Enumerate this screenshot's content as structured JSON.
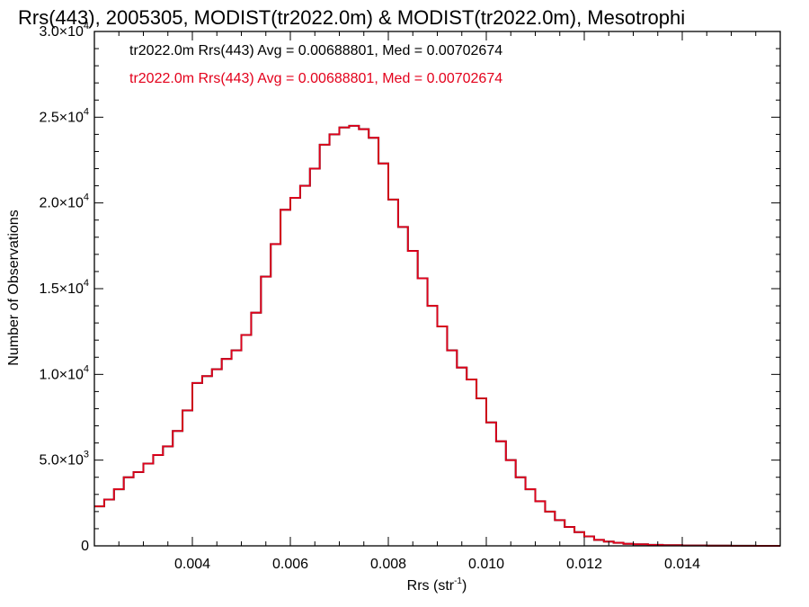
{
  "chart_data": {
    "type": "line",
    "style": "step-histogram",
    "title": "Rrs(443), 2005305, MODIST(tr2022.0m) & MODIST(tr2022.0m), Mesotrophi",
    "xlabel": "Rrs (str",
    "xlabel_sup": "-1",
    "xlabel_suffix": ")",
    "ylabel": "Number of Observations",
    "xlim": [
      0.002,
      0.016
    ],
    "ylim": [
      0,
      30000
    ],
    "x_ticks": [
      {
        "value": 0.004,
        "label": "0.004"
      },
      {
        "value": 0.006,
        "label": "0.006"
      },
      {
        "value": 0.008,
        "label": "0.008"
      },
      {
        "value": 0.01,
        "label": "0.010"
      },
      {
        "value": 0.012,
        "label": "0.012"
      },
      {
        "value": 0.014,
        "label": "0.014"
      }
    ],
    "y_ticks": [
      {
        "value": 0,
        "mant": "0",
        "exp": ""
      },
      {
        "value": 5000,
        "mant": "5.0×10",
        "exp": "3"
      },
      {
        "value": 10000,
        "mant": "1.0×10",
        "exp": "4"
      },
      {
        "value": 15000,
        "mant": "1.5×10",
        "exp": "4"
      },
      {
        "value": 20000,
        "mant": "2.0×10",
        "exp": "4"
      },
      {
        "value": 25000,
        "mant": "2.5×10",
        "exp": "4"
      },
      {
        "value": 30000,
        "mant": "3.0×10",
        "exp": "4"
      }
    ],
    "grid": false,
    "series": [
      {
        "name": "tr2022.0m Rrs(443) Avg = 0.00688801, Med = 0.00702674",
        "color": "#000000",
        "x": [
          0.002,
          0.0022,
          0.0024,
          0.0026,
          0.0028,
          0.003,
          0.0032,
          0.0034,
          0.0036,
          0.0038,
          0.004,
          0.0042,
          0.0044,
          0.0046,
          0.0048,
          0.005,
          0.0052,
          0.0054,
          0.0056,
          0.0058,
          0.006,
          0.0062,
          0.0064,
          0.0066,
          0.0068,
          0.007,
          0.0072,
          0.0074,
          0.0076,
          0.0078,
          0.008,
          0.0082,
          0.0084,
          0.0086,
          0.0088,
          0.009,
          0.0092,
          0.0094,
          0.0096,
          0.0098,
          0.01,
          0.0102,
          0.0104,
          0.0106,
          0.0108,
          0.011,
          0.0112,
          0.0114,
          0.0116,
          0.0118,
          0.012,
          0.0122,
          0.0124,
          0.0126,
          0.0128,
          0.013,
          0.0133,
          0.0136,
          0.014,
          0.0145,
          0.015,
          0.0155,
          0.016
        ],
        "values": [
          2300,
          2700,
          3300,
          4000,
          4300,
          4800,
          5300,
          5800,
          6700,
          7900,
          9500,
          9900,
          10300,
          10900,
          11400,
          12300,
          13600,
          15700,
          17600,
          19600,
          20300,
          21000,
          22000,
          23400,
          24000,
          24400,
          24500,
          24300,
          23800,
          22300,
          20200,
          18600,
          17200,
          15600,
          14000,
          12800,
          11400,
          10400,
          9700,
          8600,
          7200,
          6100,
          5000,
          4000,
          3300,
          2600,
          2000,
          1500,
          1100,
          800,
          550,
          350,
          250,
          180,
          120,
          90,
          60,
          40,
          20,
          10,
          5,
          2,
          0
        ]
      },
      {
        "name": "tr2022.0m Rrs(443) Avg = 0.00688801, Med = 0.00702674",
        "color": "#e3001b",
        "x": [
          0.002,
          0.0022,
          0.0024,
          0.0026,
          0.0028,
          0.003,
          0.0032,
          0.0034,
          0.0036,
          0.0038,
          0.004,
          0.0042,
          0.0044,
          0.0046,
          0.0048,
          0.005,
          0.0052,
          0.0054,
          0.0056,
          0.0058,
          0.006,
          0.0062,
          0.0064,
          0.0066,
          0.0068,
          0.007,
          0.0072,
          0.0074,
          0.0076,
          0.0078,
          0.008,
          0.0082,
          0.0084,
          0.0086,
          0.0088,
          0.009,
          0.0092,
          0.0094,
          0.0096,
          0.0098,
          0.01,
          0.0102,
          0.0104,
          0.0106,
          0.0108,
          0.011,
          0.0112,
          0.0114,
          0.0116,
          0.0118,
          0.012,
          0.0122,
          0.0124,
          0.0126,
          0.0128,
          0.013,
          0.0133,
          0.0136,
          0.014,
          0.0145,
          0.015,
          0.0155,
          0.016
        ],
        "values": [
          2300,
          2700,
          3300,
          4000,
          4300,
          4800,
          5300,
          5800,
          6700,
          7900,
          9500,
          9900,
          10300,
          10900,
          11400,
          12300,
          13600,
          15700,
          17600,
          19600,
          20300,
          21000,
          22000,
          23400,
          24000,
          24400,
          24500,
          24300,
          23800,
          22300,
          20200,
          18600,
          17200,
          15600,
          14000,
          12800,
          11400,
          10400,
          9700,
          8600,
          7200,
          6100,
          5000,
          4000,
          3300,
          2600,
          2000,
          1500,
          1100,
          800,
          550,
          350,
          250,
          180,
          120,
          90,
          60,
          40,
          20,
          10,
          5,
          2,
          0
        ]
      }
    ]
  }
}
